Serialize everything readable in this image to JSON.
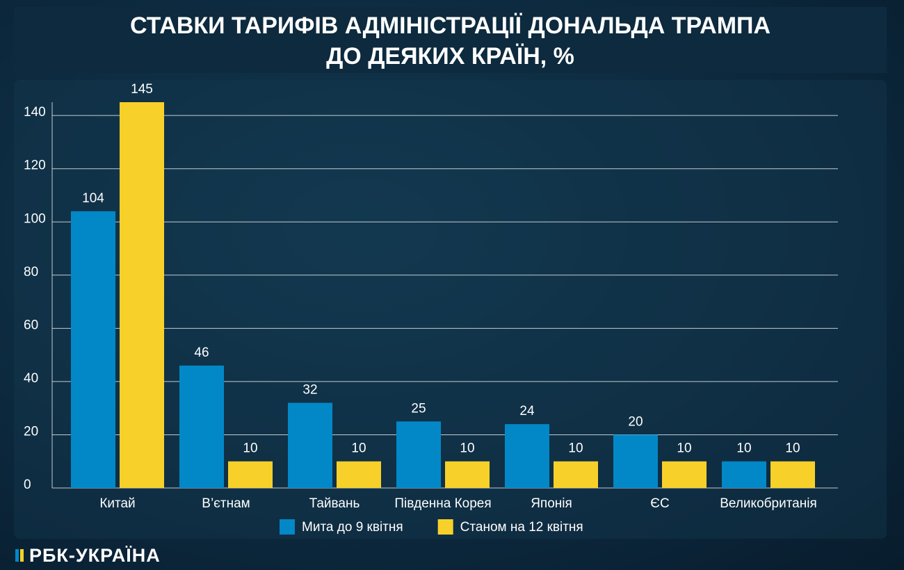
{
  "chart_data": {
    "type": "bar",
    "title": "СТАВКИ ТАРИФІВ АДМІНІСТРАЦІЇ ДОНАЛЬДА ТРАМПА\nДО ДЕЯКИХ КРАЇН, %",
    "categories": [
      "Китай",
      "В’єтнам",
      "Тайвань",
      "Південна Корея",
      "Японія",
      "ЄС",
      "Великобританія"
    ],
    "series": [
      {
        "name": "Мита до 9 квітня",
        "color": "#0288c7",
        "values": [
          104,
          46,
          32,
          25,
          24,
          20,
          10
        ]
      },
      {
        "name": "Станом на 12 квітня",
        "color": "#f7d12a",
        "values": [
          145,
          10,
          10,
          10,
          10,
          10,
          10
        ]
      }
    ],
    "ylim": [
      0,
      145
    ],
    "yticks": [
      0,
      20,
      40,
      60,
      80,
      100,
      120,
      140
    ],
    "grid": true,
    "legend": "bottom"
  },
  "logo": "РБК-УКРАЇНА"
}
